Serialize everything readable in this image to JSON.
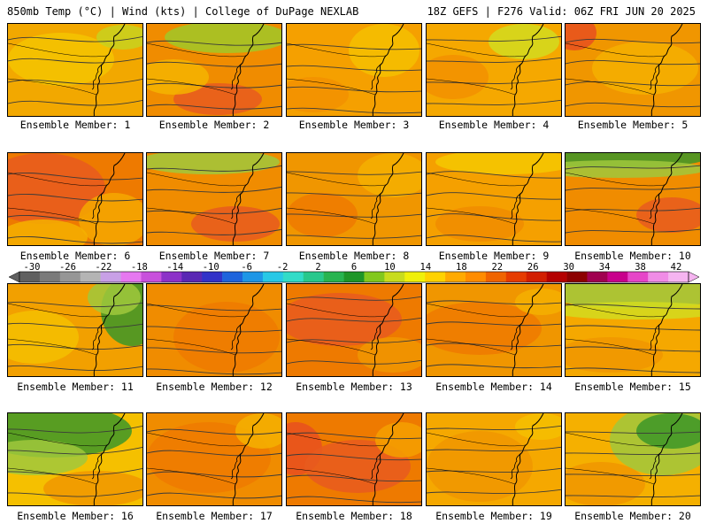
{
  "header": {
    "left": "850mb Temp (°C) | Wind (kts) | College of DuPage NEXLAB",
    "right": "18Z GEFS | F276 Valid: 06Z FRI JUN 20 2025"
  },
  "colorbar": {
    "labels": [
      "-30",
      "-26",
      "-22",
      "-18",
      "-14",
      "-10",
      "-6",
      "-2",
      "2",
      "6",
      "10",
      "14",
      "18",
      "22",
      "26",
      "30",
      "34",
      "38",
      "42"
    ],
    "colors": [
      "#606060",
      "#7a7a7a",
      "#969696",
      "#b4b4b4",
      "#c8a0e6",
      "#e678f0",
      "#c850dc",
      "#8c32c8",
      "#5a28b4",
      "#3232c8",
      "#1e64dc",
      "#1e96e6",
      "#28c8e6",
      "#32dcc8",
      "#28c88c",
      "#28b450",
      "#1e9628",
      "#82c81e",
      "#c8dc1e",
      "#f0f00a",
      "#ffd200",
      "#ffaa00",
      "#ff8c00",
      "#f06400",
      "#e63c00",
      "#d21e00",
      "#b40000",
      "#8c0000",
      "#a00050",
      "#c8008c",
      "#e646c8",
      "#f08ce6",
      "#f5b4f0"
    ]
  },
  "members": [
    {
      "label": "Ensemble Member: 1"
    },
    {
      "label": "Ensemble Member: 2"
    },
    {
      "label": "Ensemble Member: 3"
    },
    {
      "label": "Ensemble Member: 4"
    },
    {
      "label": "Ensemble Member: 5"
    },
    {
      "label": "Ensemble Member: 6"
    },
    {
      "label": "Ensemble Member: 7"
    },
    {
      "label": "Ensemble Member: 8"
    },
    {
      "label": "Ensemble Member: 9"
    },
    {
      "label": "Ensemble Member: 10"
    },
    {
      "label": "Ensemble Member: 11"
    },
    {
      "label": "Ensemble Member: 12"
    },
    {
      "label": "Ensemble Member: 13"
    },
    {
      "label": "Ensemble Member: 14"
    },
    {
      "label": "Ensemble Member: 15"
    },
    {
      "label": "Ensemble Member: 16"
    },
    {
      "label": "Ensemble Member: 17"
    },
    {
      "label": "Ensemble Member: 18"
    },
    {
      "label": "Ensemble Member: 19"
    },
    {
      "label": "Ensemble Member: 20"
    }
  ]
}
